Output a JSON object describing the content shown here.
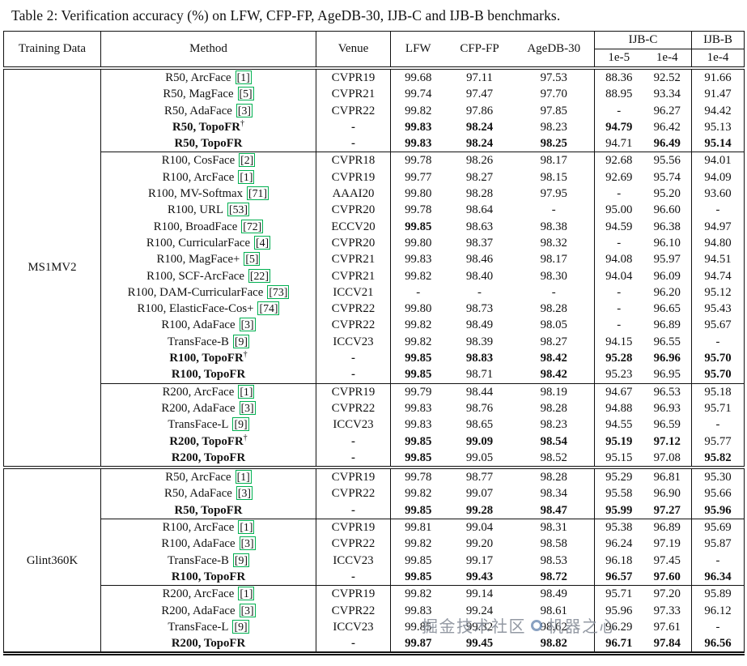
{
  "caption": "Table 2: Verification accuracy (%) on LFW, CFP-FP, AgeDB-30, IJB-C and IJB-B benchmarks.",
  "header": {
    "col1": "Training Data",
    "col2": "Method",
    "col3": "Venue",
    "col4": "LFW",
    "col5": "CFP-FP",
    "col6": "AgeDB-30",
    "ijbc": "IJB-C",
    "ijbb": "IJB-B",
    "ijbc_sub": [
      "1e-5",
      "1e-4"
    ],
    "ijbb_sub": "1e-4"
  },
  "colors": {
    "citation_box": "#00b050"
  },
  "watermark": {
    "left": "掘金技术社区",
    "right": "机器之心",
    "icon": "circle-logo"
  },
  "groups": [
    {
      "training_data": "MS1MV2",
      "rows": [
        {
          "method": "R50, ArcFace",
          "cite": "1",
          "venue": "CVPR19",
          "values": [
            "99.68",
            "97.11",
            "97.53",
            "88.36",
            "92.52",
            "91.66"
          ]
        },
        {
          "method": "R50, MagFace",
          "cite": "5",
          "venue": "CVPR21",
          "values": [
            "99.74",
            "97.47",
            "97.70",
            "88.95",
            "93.34",
            "91.47"
          ]
        },
        {
          "method": "R50, AdaFace",
          "cite": "3",
          "venue": "CVPR22",
          "values": [
            "99.82",
            "97.86",
            "97.85",
            "-",
            "96.27",
            "94.42"
          ]
        },
        {
          "method": "R50, TopoFR",
          "dagger": true,
          "bold": true,
          "venue": "-",
          "values": [
            "99.83",
            "98.24",
            "98.23",
            "94.79",
            "96.42",
            "95.13"
          ],
          "bold_cols": [
            0,
            1,
            3
          ]
        },
        {
          "method": "R50, TopoFR",
          "bold": true,
          "venue": "-",
          "values": [
            "99.83",
            "98.24",
            "98.25",
            "94.71",
            "96.49",
            "95.14"
          ],
          "bold_cols": [
            0,
            1,
            2,
            4,
            5
          ],
          "cline": true
        },
        {
          "method": "R100, CosFace",
          "cite": "2",
          "venue": "CVPR18",
          "values": [
            "99.78",
            "98.26",
            "98.17",
            "92.68",
            "95.56",
            "94.01"
          ]
        },
        {
          "method": "R100, ArcFace",
          "cite": "1",
          "venue": "CVPR19",
          "values": [
            "99.77",
            "98.27",
            "98.15",
            "92.69",
            "95.74",
            "94.09"
          ]
        },
        {
          "method": "R100, MV-Softmax",
          "cite": "71",
          "venue": "AAAI20",
          "values": [
            "99.80",
            "98.28",
            "97.95",
            "-",
            "95.20",
            "93.60"
          ]
        },
        {
          "method": "R100, URL",
          "cite": "53",
          "venue": "CVPR20",
          "values": [
            "99.78",
            "98.64",
            "-",
            "95.00",
            "96.60",
            "-"
          ]
        },
        {
          "method": "R100, BroadFace",
          "cite": "72",
          "venue": "ECCV20",
          "values": [
            "99.85",
            "98.63",
            "98.38",
            "94.59",
            "96.38",
            "94.97"
          ],
          "bold_cols": [
            0
          ]
        },
        {
          "method": "R100, CurricularFace",
          "cite": "4",
          "venue": "CVPR20",
          "values": [
            "99.80",
            "98.37",
            "98.32",
            "-",
            "96.10",
            "94.80"
          ]
        },
        {
          "method": "R100, MagFace+",
          "cite": "5",
          "venue": "CVPR21",
          "values": [
            "99.83",
            "98.46",
            "98.17",
            "94.08",
            "95.97",
            "94.51"
          ]
        },
        {
          "method": "R100, SCF-ArcFace",
          "cite": "22",
          "venue": "CVPR21",
          "values": [
            "99.82",
            "98.40",
            "98.30",
            "94.04",
            "96.09",
            "94.74"
          ]
        },
        {
          "method": "R100, DAM-CurricularFace",
          "cite": "73",
          "venue": "ICCV21",
          "values": [
            "-",
            "-",
            "-",
            "-",
            "96.20",
            "95.12"
          ]
        },
        {
          "method": "R100, ElasticFace-Cos+",
          "cite": "74",
          "venue": "CVPR22",
          "values": [
            "99.80",
            "98.73",
            "98.28",
            "-",
            "96.65",
            "95.43"
          ]
        },
        {
          "method": "R100, AdaFace",
          "cite": "3",
          "venue": "CVPR22",
          "values": [
            "99.82",
            "98.49",
            "98.05",
            "-",
            "96.89",
            "95.67"
          ]
        },
        {
          "method": "TransFace-B",
          "cite": "9",
          "venue": "ICCV23",
          "values": [
            "99.82",
            "98.39",
            "98.27",
            "94.15",
            "96.55",
            "-"
          ]
        },
        {
          "method": "R100, TopoFR",
          "dagger": true,
          "bold": true,
          "venue": "-",
          "values": [
            "99.85",
            "98.83",
            "98.42",
            "95.28",
            "96.96",
            "95.70"
          ],
          "bold_cols": [
            0,
            1,
            2,
            3,
            4,
            5
          ]
        },
        {
          "method": "R100, TopoFR",
          "bold": true,
          "venue": "-",
          "values": [
            "99.85",
            "98.71",
            "98.42",
            "95.23",
            "96.95",
            "95.70"
          ],
          "bold_cols": [
            0,
            2,
            5
          ],
          "cline": true
        },
        {
          "method": "R200, ArcFace",
          "cite": "1",
          "venue": "CVPR19",
          "values": [
            "99.79",
            "98.44",
            "98.19",
            "94.67",
            "96.53",
            "95.18"
          ]
        },
        {
          "method": "R200, AdaFace",
          "cite": "3",
          "venue": "CVPR22",
          "values": [
            "99.83",
            "98.76",
            "98.28",
            "94.88",
            "96.93",
            "95.71"
          ]
        },
        {
          "method": "TransFace-L",
          "cite": "9",
          "venue": "ICCV23",
          "values": [
            "99.83",
            "98.65",
            "98.23",
            "94.55",
            "96.59",
            "-"
          ]
        },
        {
          "method": "R200, TopoFR",
          "dagger": true,
          "bold": true,
          "venue": "-",
          "values": [
            "99.85",
            "99.09",
            "98.54",
            "95.19",
            "97.12",
            "95.77"
          ],
          "bold_cols": [
            0,
            1,
            2,
            3,
            4
          ]
        },
        {
          "method": "R200, TopoFR",
          "bold": true,
          "venue": "-",
          "values": [
            "99.85",
            "99.05",
            "98.52",
            "95.15",
            "97.08",
            "95.82"
          ],
          "bold_cols": [
            0,
            5
          ]
        }
      ]
    },
    {
      "training_data": "Glint360K",
      "rows": [
        {
          "method": "R50, ArcFace",
          "cite": "1",
          "venue": "CVPR19",
          "values": [
            "99.78",
            "98.77",
            "98.28",
            "95.29",
            "96.81",
            "95.30"
          ]
        },
        {
          "method": "R50, AdaFace",
          "cite": "3",
          "venue": "CVPR22",
          "values": [
            "99.82",
            "99.07",
            "98.34",
            "95.58",
            "96.90",
            "95.66"
          ]
        },
        {
          "method": "R50, TopoFR",
          "bold": true,
          "venue": "-",
          "values": [
            "99.85",
            "99.28",
            "98.47",
            "95.99",
            "97.27",
            "95.96"
          ],
          "bold_cols": [
            0,
            1,
            2,
            3,
            4,
            5
          ],
          "cline": true
        },
        {
          "method": "R100, ArcFace",
          "cite": "1",
          "venue": "CVPR19",
          "values": [
            "99.81",
            "99.04",
            "98.31",
            "95.38",
            "96.89",
            "95.69"
          ]
        },
        {
          "method": "R100, AdaFace",
          "cite": "3",
          "venue": "CVPR22",
          "values": [
            "99.82",
            "99.20",
            "98.58",
            "96.24",
            "97.19",
            "95.87"
          ]
        },
        {
          "method": "TransFace-B",
          "cite": "9",
          "venue": "ICCV23",
          "values": [
            "99.85",
            "99.17",
            "98.53",
            "96.18",
            "97.45",
            "-"
          ]
        },
        {
          "method": "R100, TopoFR",
          "bold": true,
          "venue": "-",
          "values": [
            "99.85",
            "99.43",
            "98.72",
            "96.57",
            "97.60",
            "96.34"
          ],
          "bold_cols": [
            0,
            1,
            2,
            3,
            4,
            5
          ],
          "cline": true
        },
        {
          "method": "R200, ArcFace",
          "cite": "1",
          "venue": "CVPR19",
          "values": [
            "99.82",
            "99.14",
            "98.49",
            "95.71",
            "97.20",
            "95.89"
          ]
        },
        {
          "method": "R200, AdaFace",
          "cite": "3",
          "venue": "CVPR22",
          "values": [
            "99.83",
            "99.24",
            "98.61",
            "95.96",
            "97.33",
            "96.12"
          ]
        },
        {
          "method": "TransFace-L",
          "cite": "9",
          "venue": "ICCV23",
          "values": [
            "99.85",
            "99.32",
            "98.62",
            "96.29",
            "97.61",
            "-"
          ]
        },
        {
          "method": "R200, TopoFR",
          "bold": true,
          "venue": "-",
          "values": [
            "99.87",
            "99.45",
            "98.82",
            "96.71",
            "97.84",
            "96.56"
          ],
          "bold_cols": [
            0,
            1,
            2,
            3,
            4,
            5
          ]
        }
      ]
    }
  ]
}
